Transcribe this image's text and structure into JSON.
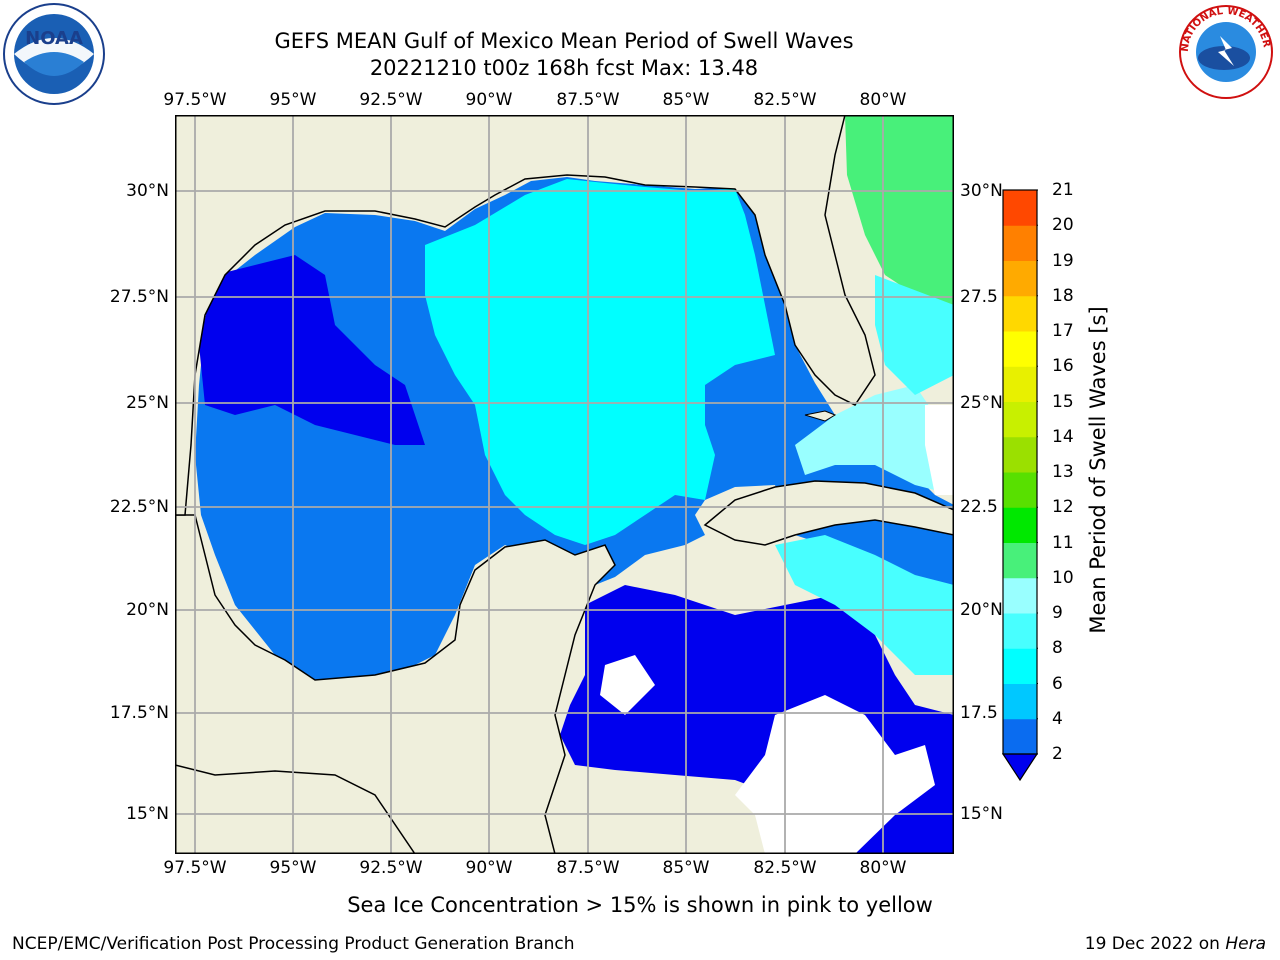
{
  "title_line1": "GEFS MEAN Gulf of Mexico Mean Period of Swell Waves",
  "title_line2": "20221210 t00z 168h fcst   Max: 13.48",
  "lon_labels": [
    "97.5°W",
    "95°W",
    "92.5°W",
    "90°W",
    "87.5°W",
    "85°W",
    "82.5°W",
    "80°W"
  ],
  "lat_labels": [
    "30°N",
    "27.5°N",
    "25°N",
    "22.5°N",
    "20°N",
    "17.5°N",
    "15°N"
  ],
  "right_lat_labels": [
    "30°N",
    "27.5",
    "25°N",
    "22.5",
    "20°N",
    "17.5",
    "15°N"
  ],
  "colorbar": {
    "label": "Mean Period of Swell Waves [s]",
    "ticks": [
      "2",
      "4",
      "6",
      "8",
      "9",
      "10",
      "11",
      "12",
      "13",
      "14",
      "15",
      "16",
      "17",
      "18",
      "19",
      "20",
      "21"
    ],
    "colors": [
      "#0a6cf0",
      "#00c8ff",
      "#00ffff",
      "#48ffff",
      "#99ffff",
      "#48f07a",
      "#00e800",
      "#58e000",
      "#9be000",
      "#c8f000",
      "#e8f000",
      "#ffff00",
      "#ffd800",
      "#ffaa00",
      "#ff8000",
      "#ff4800",
      "#ff0000"
    ],
    "extend_color": "#0000ee"
  },
  "ice_note": "Sea Ice Concentration > 15% is shown in pink to yellow",
  "credit": "NCEP/EMC/Verification Post Processing Product Generation Branch",
  "stamp_date": "19 Dec 2022 on",
  "stamp_host": "Hera",
  "logos": {
    "left": "NOAA",
    "right": "NATIONAL WEATHER SERVICE"
  },
  "colors": {
    "land": "#efefdc",
    "deep_blue": "#0000ee",
    "mid_blue": "#0a78f0",
    "cyan": "#00ffff",
    "light_cyan": "#99ffff",
    "green": "#48f07a",
    "grid": "#aaaaaa"
  }
}
